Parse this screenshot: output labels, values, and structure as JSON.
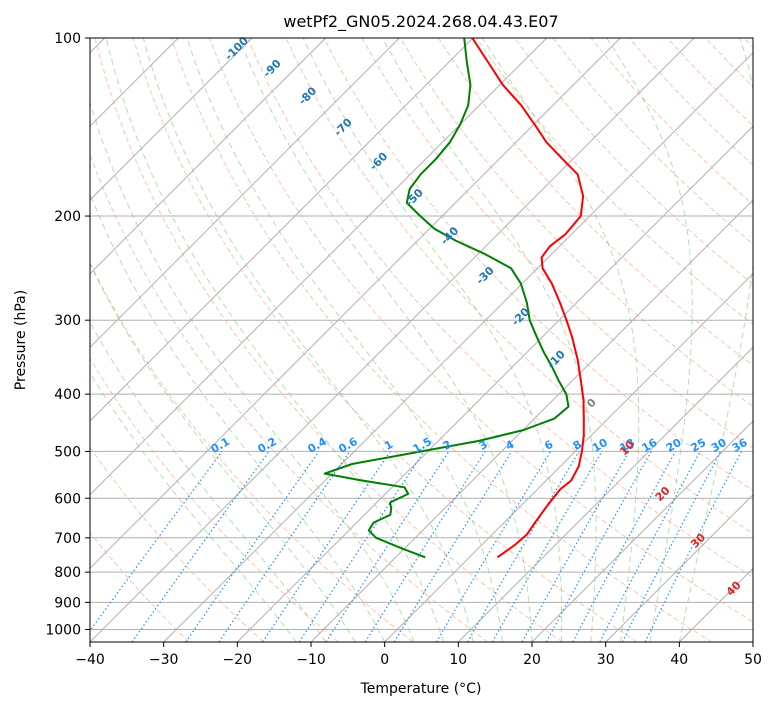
{
  "chart_data": {
    "type": "line",
    "title": "wetPf2_GN05.2024.268.04.43.E07",
    "xlabel": "Temperature (°C)",
    "ylabel": "Pressure (hPa)",
    "xlim": [
      -40,
      50
    ],
    "ylim": [
      1050,
      100
    ],
    "y_scale": "log",
    "x_ticks": [
      "−40",
      "−30",
      "−20",
      "−10",
      "0",
      "10",
      "20",
      "30",
      "40",
      "50"
    ],
    "y_ticks": [
      "100",
      "200",
      "300",
      "400",
      "500",
      "600",
      "700",
      "800",
      "900",
      "1000"
    ],
    "grid": true,
    "series": [
      {
        "role": "temperature",
        "color": "#ff0000",
        "points": [
          {
            "p": 755,
            "t": 3.8
          },
          {
            "p": 720,
            "t": 4.5
          },
          {
            "p": 690,
            "t": 4.7
          },
          {
            "p": 660,
            "t": 4.2
          },
          {
            "p": 620,
            "t": 3.6
          },
          {
            "p": 580,
            "t": 3.1
          },
          {
            "p": 560,
            "t": 3.4
          },
          {
            "p": 530,
            "t": 2.5
          },
          {
            "p": 500,
            "t": 0.9
          },
          {
            "p": 470,
            "t": -1.0
          },
          {
            "p": 440,
            "t": -3.3
          },
          {
            "p": 410,
            "t": -5.8
          },
          {
            "p": 380,
            "t": -8.8
          },
          {
            "p": 350,
            "t": -12.1
          },
          {
            "p": 320,
            "t": -16.0
          },
          {
            "p": 300,
            "t": -19.0
          },
          {
            "p": 280,
            "t": -22.3
          },
          {
            "p": 260,
            "t": -26.0
          },
          {
            "p": 245,
            "t": -29.3
          },
          {
            "p": 235,
            "t": -30.9
          },
          {
            "p": 225,
            "t": -31.3
          },
          {
            "p": 215,
            "t": -30.8
          },
          {
            "p": 200,
            "t": -31.2
          },
          {
            "p": 185,
            "t": -33.6
          },
          {
            "p": 170,
            "t": -37.3
          },
          {
            "p": 160,
            "t": -41.5
          },
          {
            "p": 150,
            "t": -45.9
          },
          {
            "p": 140,
            "t": -49.9
          },
          {
            "p": 130,
            "t": -54.3
          },
          {
            "p": 120,
            "t": -59.6
          },
          {
            "p": 110,
            "t": -64.6
          },
          {
            "p": 100,
            "t": -70.1
          }
        ]
      },
      {
        "role": "dewpoint",
        "color": "#008000",
        "points": [
          {
            "p": 755,
            "t": -6.0
          },
          {
            "p": 730,
            "t": -10.3
          },
          {
            "p": 700,
            "t": -15.3
          },
          {
            "p": 680,
            "t": -17.3
          },
          {
            "p": 660,
            "t": -17.7
          },
          {
            "p": 640,
            "t": -16.5
          },
          {
            "p": 625,
            "t": -17.2
          },
          {
            "p": 610,
            "t": -18.2
          },
          {
            "p": 590,
            "t": -16.9
          },
          {
            "p": 575,
            "t": -18.3
          },
          {
            "p": 560,
            "t": -25.0
          },
          {
            "p": 545,
            "t": -31.0
          },
          {
            "p": 525,
            "t": -28.6
          },
          {
            "p": 500,
            "t": -20.9
          },
          {
            "p": 480,
            "t": -14.5
          },
          {
            "p": 460,
            "t": -9.9
          },
          {
            "p": 440,
            "t": -7.3
          },
          {
            "p": 420,
            "t": -7.0
          },
          {
            "p": 400,
            "t": -9.0
          },
          {
            "p": 380,
            "t": -11.8
          },
          {
            "p": 360,
            "t": -14.6
          },
          {
            "p": 340,
            "t": -17.7
          },
          {
            "p": 320,
            "t": -20.8
          },
          {
            "p": 300,
            "t": -24.0
          },
          {
            "p": 280,
            "t": -26.8
          },
          {
            "p": 260,
            "t": -30.2
          },
          {
            "p": 245,
            "t": -33.6
          },
          {
            "p": 232,
            "t": -39.0
          },
          {
            "p": 220,
            "t": -44.9
          },
          {
            "p": 210,
            "t": -49.4
          },
          {
            "p": 200,
            "t": -53.0
          },
          {
            "p": 190,
            "t": -56.6
          },
          {
            "p": 180,
            "t": -58.1
          },
          {
            "p": 170,
            "t": -58.6
          },
          {
            "p": 160,
            "t": -58.6
          },
          {
            "p": 150,
            "t": -59.0
          },
          {
            "p": 140,
            "t": -60.0
          },
          {
            "p": 130,
            "t": -61.5
          },
          {
            "p": 120,
            "t": -64.0
          },
          {
            "p": 110,
            "t": -67.5
          },
          {
            "p": 100,
            "t": -71.2
          }
        ]
      }
    ],
    "isotherm_labels": [
      {
        "t": -100,
        "color": "#1f77b4"
      },
      {
        "t": -90,
        "color": "#1f77b4"
      },
      {
        "t": -80,
        "color": "#1f77b4"
      },
      {
        "t": -70,
        "color": "#1f77b4"
      },
      {
        "t": -60,
        "color": "#1f77b4"
      },
      {
        "t": -50,
        "color": "#1f77b4"
      },
      {
        "t": -40,
        "color": "#1f77b4"
      },
      {
        "t": -30,
        "color": "#1f77b4"
      },
      {
        "t": -20,
        "color": "#1f77b4"
      },
      {
        "t": -10,
        "color": "#1f77b4"
      },
      {
        "t": 0,
        "color": "#808080"
      },
      {
        "t": 10,
        "color": "#d62728"
      },
      {
        "t": 20,
        "color": "#d62728"
      },
      {
        "t": 30,
        "color": "#d62728"
      },
      {
        "t": 40,
        "color": "#d62728"
      }
    ],
    "mixing_ratio_labels": [
      "0.1",
      "0.2",
      "0.4",
      "0.6",
      "1",
      "1.5",
      "2",
      "3",
      "4",
      "6",
      "8",
      "10",
      "13",
      "16",
      "20",
      "25",
      "30",
      "36"
    ],
    "mixing_ratio_values": [
      0.1,
      0.2,
      0.4,
      0.6,
      1,
      1.5,
      2,
      3,
      4,
      6,
      8,
      10,
      13,
      16,
      20,
      25,
      30,
      36
    ],
    "colors": {
      "temperature": "#ff0000",
      "dewpoint": "#008000",
      "dry_adiabat": "#ff7f50",
      "moist_adiabat": "#2ca02c",
      "mixing_ratio": "#1e90ff",
      "isotherm_grid": "#b0b0b0"
    }
  }
}
